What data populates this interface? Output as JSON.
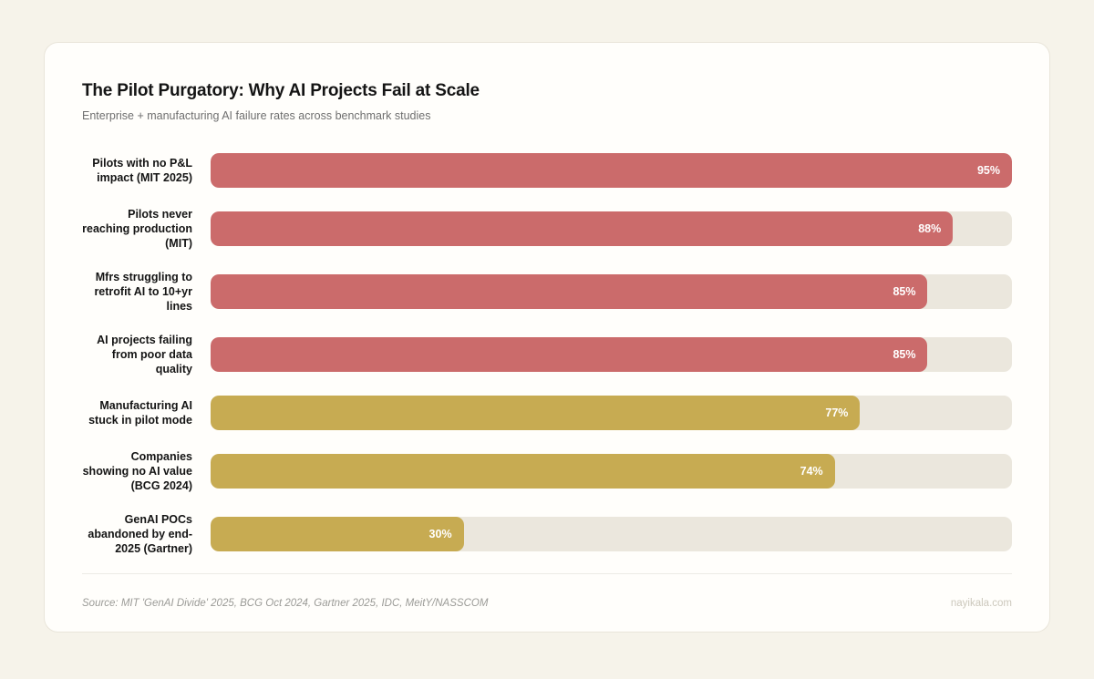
{
  "header": {
    "title": "The Pilot Purgatory: Why AI Projects Fail at Scale",
    "subtitle": "Enterprise + manufacturing AI failure rates across benchmark studies"
  },
  "chart_data": {
    "type": "bar",
    "orientation": "horizontal",
    "title": "The Pilot Purgatory: Why AI Projects Fail at Scale",
    "subtitle": "Enterprise + manufacturing AI failure rates across benchmark studies",
    "categories": [
      "Pilots with no P&L impact (MIT 2025)",
      "Pilots never reaching production (MIT)",
      "Mfrs struggling to retrofit AI to 10+yr lines",
      "AI projects failing from poor data quality",
      "Manufacturing AI stuck in pilot mode",
      "Companies showing no AI value (BCG 2024)",
      "GenAI POCs abandoned by end-2025 (Gartner)"
    ],
    "values": [
      95,
      88,
      85,
      85,
      77,
      74,
      30
    ],
    "value_labels": [
      "95%",
      "88%",
      "85%",
      "85%",
      "77%",
      "74%",
      "30%"
    ],
    "bar_colors": [
      "#cb6b6b",
      "#cb6b6b",
      "#cb6b6b",
      "#cb6b6b",
      "#c7ab52",
      "#c7ab52",
      "#c7ab52"
    ],
    "track_color": "#ebe7dd",
    "xlim": [
      0,
      95
    ],
    "grid": false,
    "legend": false,
    "value_label_position": "inside-end"
  },
  "colors": {
    "red": "#cb6b6b",
    "gold": "#c7ab52",
    "track": "#ebe7dd",
    "page_bg": "#f6f3ea",
    "card_bg": "#fffefb"
  },
  "footer": {
    "source": "Source: MIT 'GenAI Divide' 2025, BCG Oct 2024, Gartner 2025, IDC, MeitY/NASSCOM",
    "site": "nayikala.com"
  }
}
